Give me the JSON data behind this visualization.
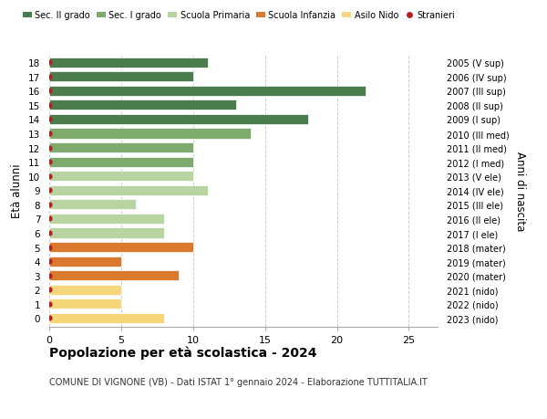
{
  "ages": [
    18,
    17,
    16,
    15,
    14,
    13,
    12,
    11,
    10,
    9,
    8,
    7,
    6,
    5,
    4,
    3,
    2,
    1,
    0
  ],
  "right_labels": [
    "2005 (V sup)",
    "2006 (IV sup)",
    "2007 (III sup)",
    "2008 (II sup)",
    "2009 (I sup)",
    "2010 (III med)",
    "2011 (II med)",
    "2012 (I med)",
    "2013 (V ele)",
    "2014 (IV ele)",
    "2015 (III ele)",
    "2016 (II ele)",
    "2017 (I ele)",
    "2018 (mater)",
    "2019 (mater)",
    "2020 (mater)",
    "2021 (nido)",
    "2022 (nido)",
    "2023 (nido)"
  ],
  "values": [
    11,
    10,
    22,
    13,
    18,
    14,
    10,
    10,
    10,
    11,
    6,
    8,
    8,
    10,
    5,
    9,
    5,
    5,
    8
  ],
  "bar_colors": [
    "#4a7c4e",
    "#4a7c4e",
    "#4a7c4e",
    "#4a7c4e",
    "#4a7c4e",
    "#7faa6e",
    "#7faa6e",
    "#7faa6e",
    "#b8d4a0",
    "#b8d4a0",
    "#b8d4a0",
    "#b8d4a0",
    "#b8d4a0",
    "#d97a2e",
    "#d97a2e",
    "#d97a2e",
    "#f5d67a",
    "#f5d67a",
    "#f5d67a"
  ],
  "legend_labels": [
    "Sec. II grado",
    "Sec. I grado",
    "Scuola Primaria",
    "Scuola Infanzia",
    "Asilo Nido",
    "Stranieri"
  ],
  "legend_colors": [
    "#4a7c4e",
    "#7faa6e",
    "#b8d4a0",
    "#d97a2e",
    "#f5d67a",
    "#b22222"
  ],
  "stranieri_marker_color": "#b22222",
  "ylabel": "Età alunni",
  "right_axis_label": "Anni di nascita",
  "title": "Popolazione per età scolastica - 2024",
  "subtitle": "COMUNE DI VIGNONE (VB) - Dati ISTAT 1° gennaio 2024 - Elaborazione TUTTITALIA.IT",
  "xlim": [
    0,
    27
  ],
  "xticks": [
    0,
    5,
    10,
    15,
    20,
    25
  ],
  "background_color": "#ffffff",
  "grid_color": "#cccccc",
  "bar_height": 0.72
}
